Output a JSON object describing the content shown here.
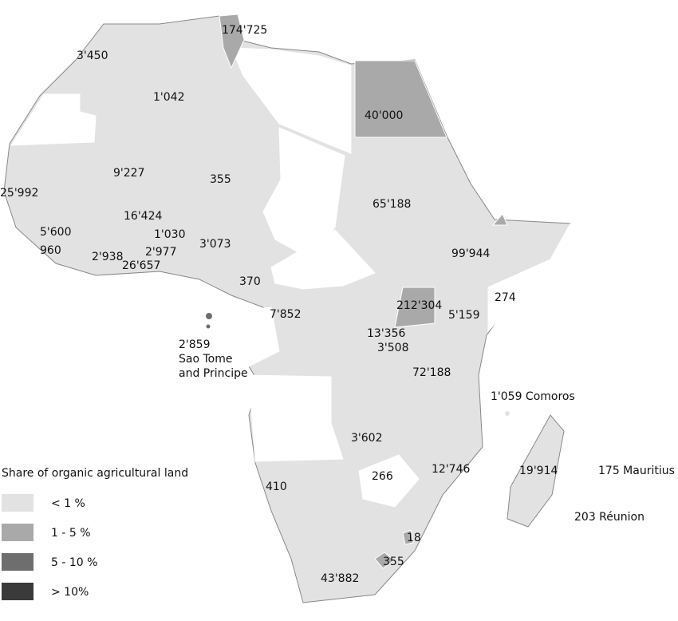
{
  "legend": {
    "title": "Share of organic agricultural land",
    "items": [
      {
        "label": "< 1 %",
        "color": "#e2e2e2"
      },
      {
        "label": "1 - 5 %",
        "color": "#a9a9a9"
      },
      {
        "label": "5 - 10 %",
        "color": "#6e6e6e"
      },
      {
        "label": "> 10%",
        "color": "#3a3a3a"
      }
    ]
  },
  "labels": [
    "174'725",
    "3'450",
    "1'042",
    "40'000",
    "9'227",
    "355",
    "25'992",
    "65'188",
    "16'424",
    "5'600",
    "1'030",
    "3'073",
    "960",
    "2'938",
    "2'977",
    "26'657",
    "99'944",
    "370",
    "212'304",
    "274",
    "7'852",
    "5'159",
    "13'356",
    "3'508",
    "2'859",
    "Sao Tome",
    "and Principe",
    "72'188",
    "1'059 Comoros",
    "3'602",
    "12'746",
    "19'914",
    "175 Mauritius",
    "410",
    "266",
    "203 Réunion",
    "18",
    "355",
    "43'882"
  ]
}
